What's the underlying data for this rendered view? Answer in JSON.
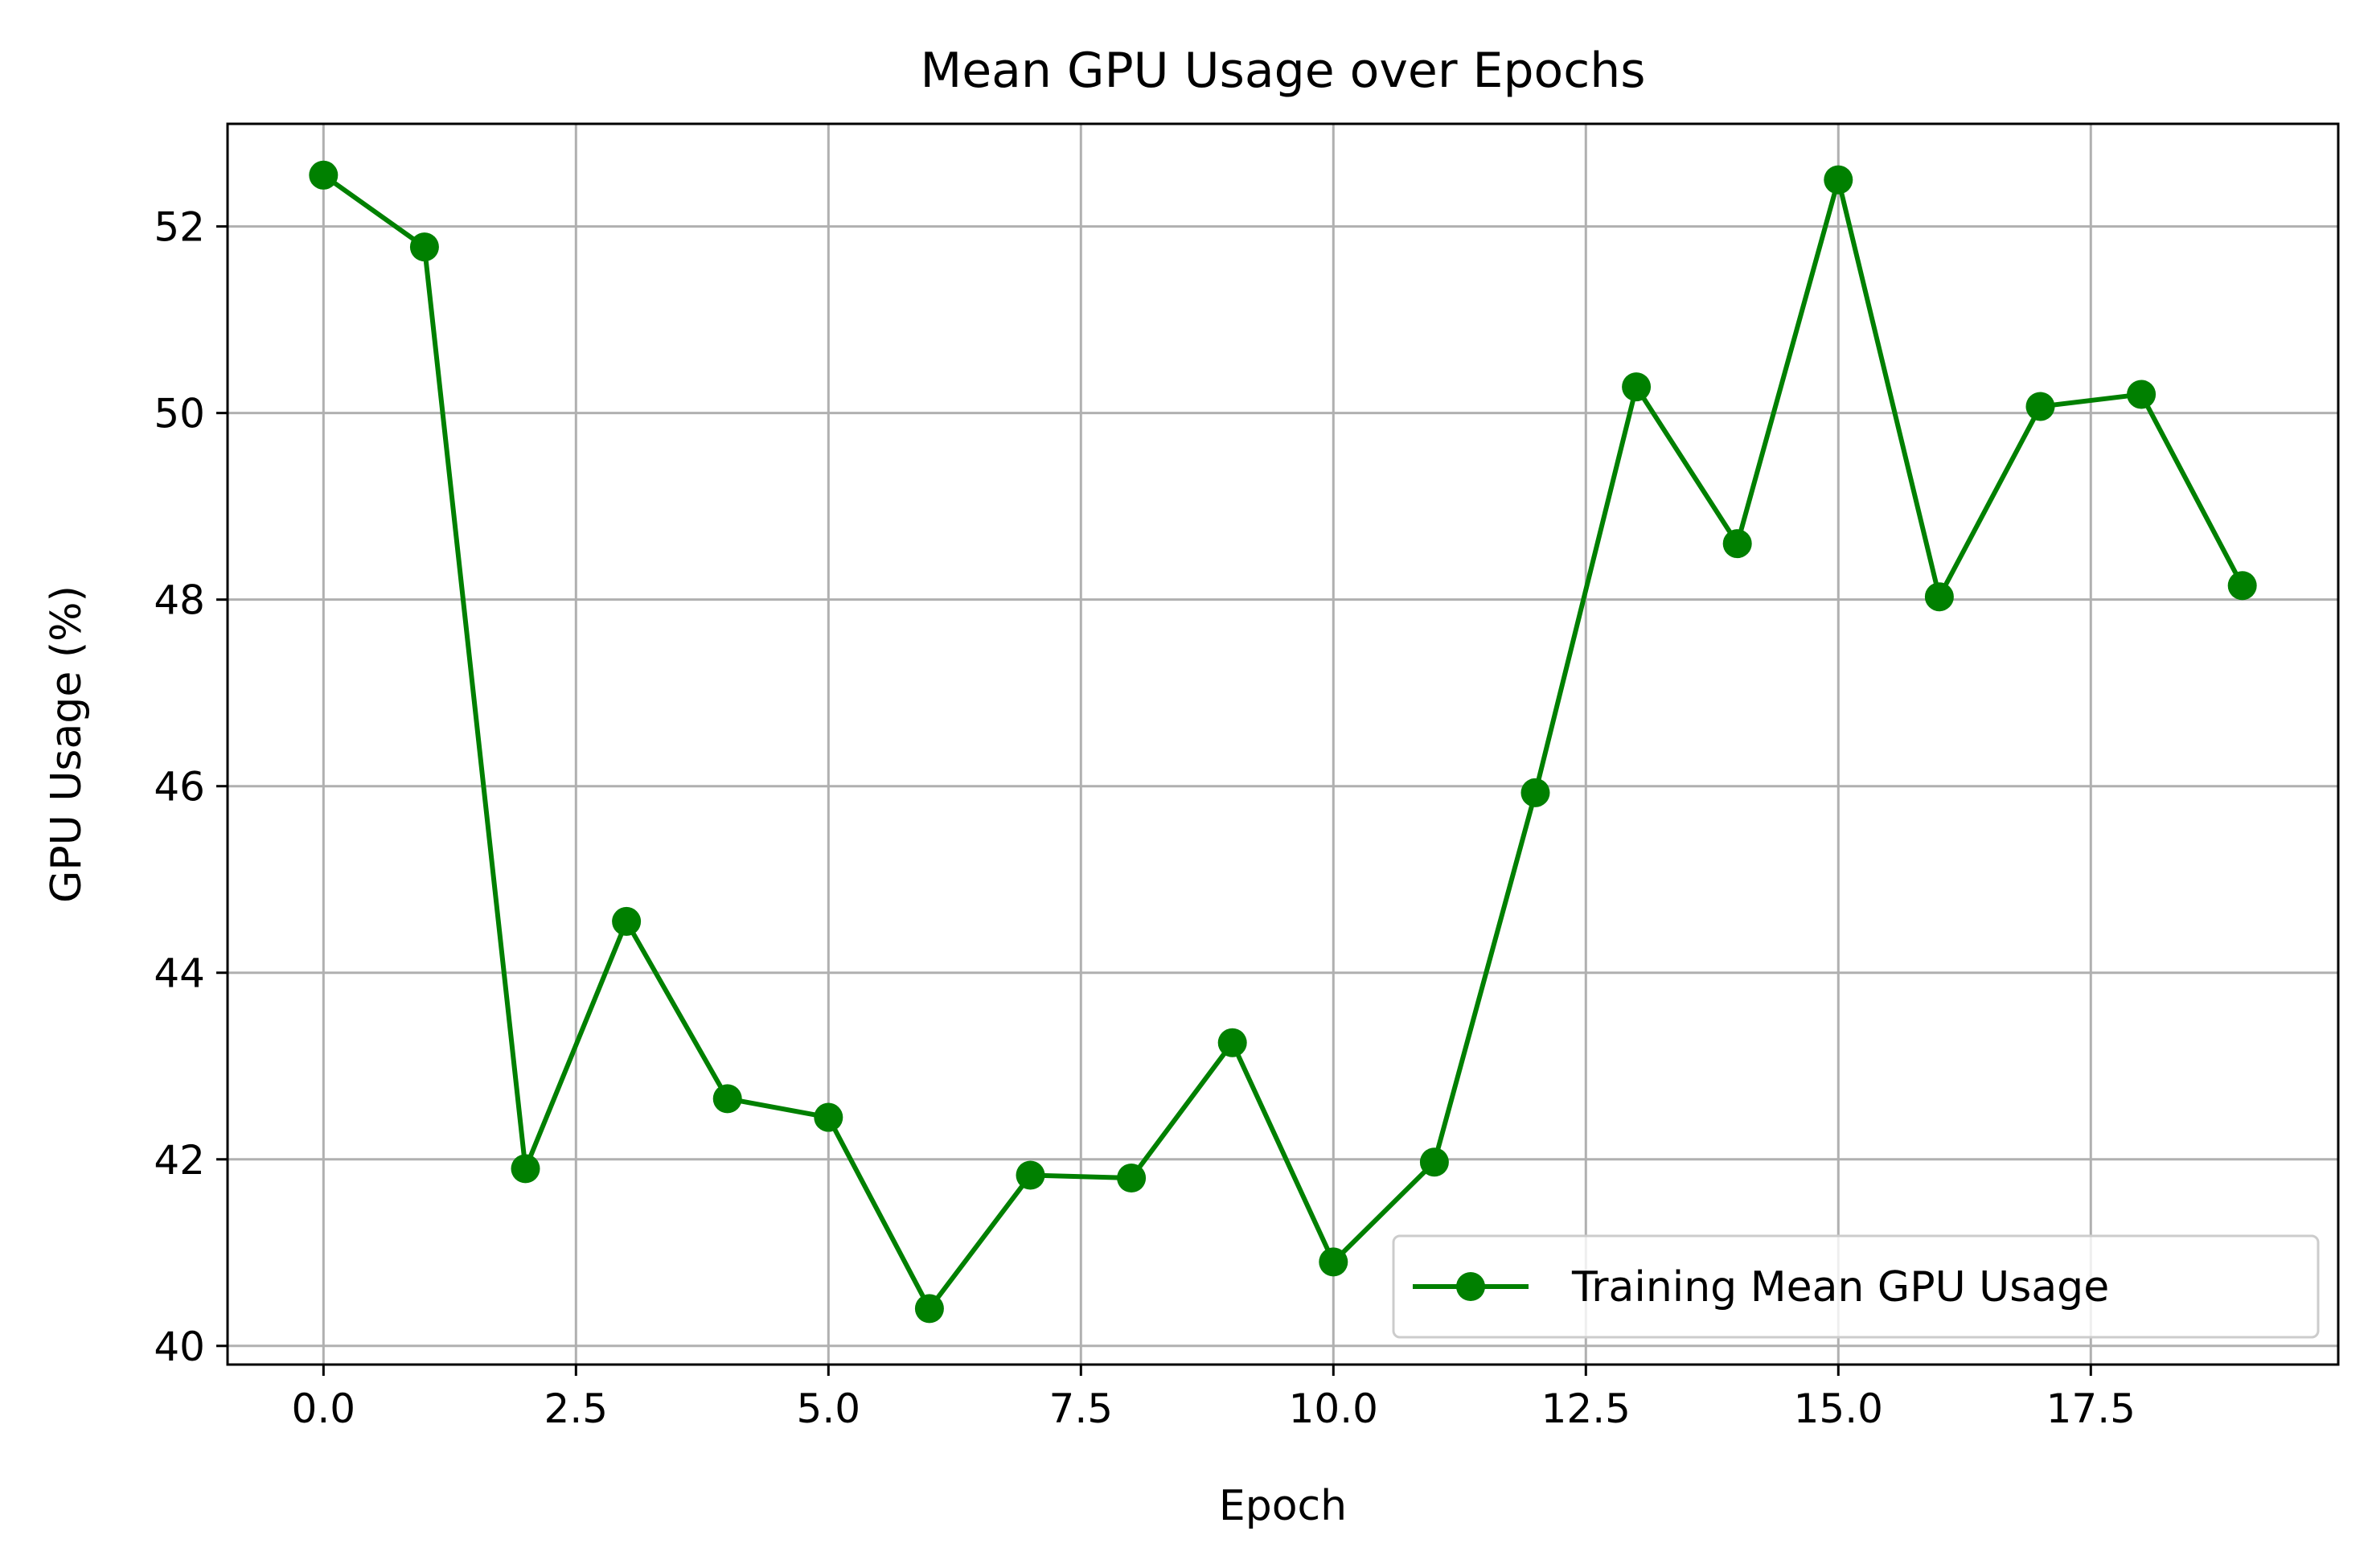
{
  "chart_data": {
    "type": "line",
    "title": "Mean GPU Usage over Epochs",
    "xlabel": "Epoch",
    "ylabel": "GPU Usage (%)",
    "xlim": [
      -0.95,
      19.95
    ],
    "ylim": [
      39.8,
      53.1
    ],
    "x_ticks": [
      0.0,
      2.5,
      5.0,
      7.5,
      10.0,
      12.5,
      15.0,
      17.5
    ],
    "x_tick_labels": [
      "0.0",
      "2.5",
      "5.0",
      "7.5",
      "10.0",
      "12.5",
      "15.0",
      "17.5"
    ],
    "y_ticks": [
      40,
      42,
      44,
      46,
      48,
      50,
      52
    ],
    "y_tick_labels": [
      "40",
      "42",
      "44",
      "46",
      "48",
      "50",
      "52"
    ],
    "grid": true,
    "legend_position": "bottom-right",
    "series": [
      {
        "name": "Training Mean GPU Usage",
        "color": "#008000",
        "marker": "circle",
        "x": [
          0,
          1,
          2,
          3,
          4,
          5,
          6,
          7,
          8,
          9,
          10,
          11,
          12,
          13,
          14,
          15,
          16,
          17,
          18,
          19
        ],
        "y": [
          52.55,
          51.78,
          41.9,
          44.55,
          42.65,
          42.45,
          40.4,
          41.83,
          41.8,
          43.25,
          40.9,
          41.97,
          45.93,
          50.28,
          48.6,
          52.5,
          48.03,
          50.07,
          50.2,
          48.15
        ]
      }
    ]
  }
}
